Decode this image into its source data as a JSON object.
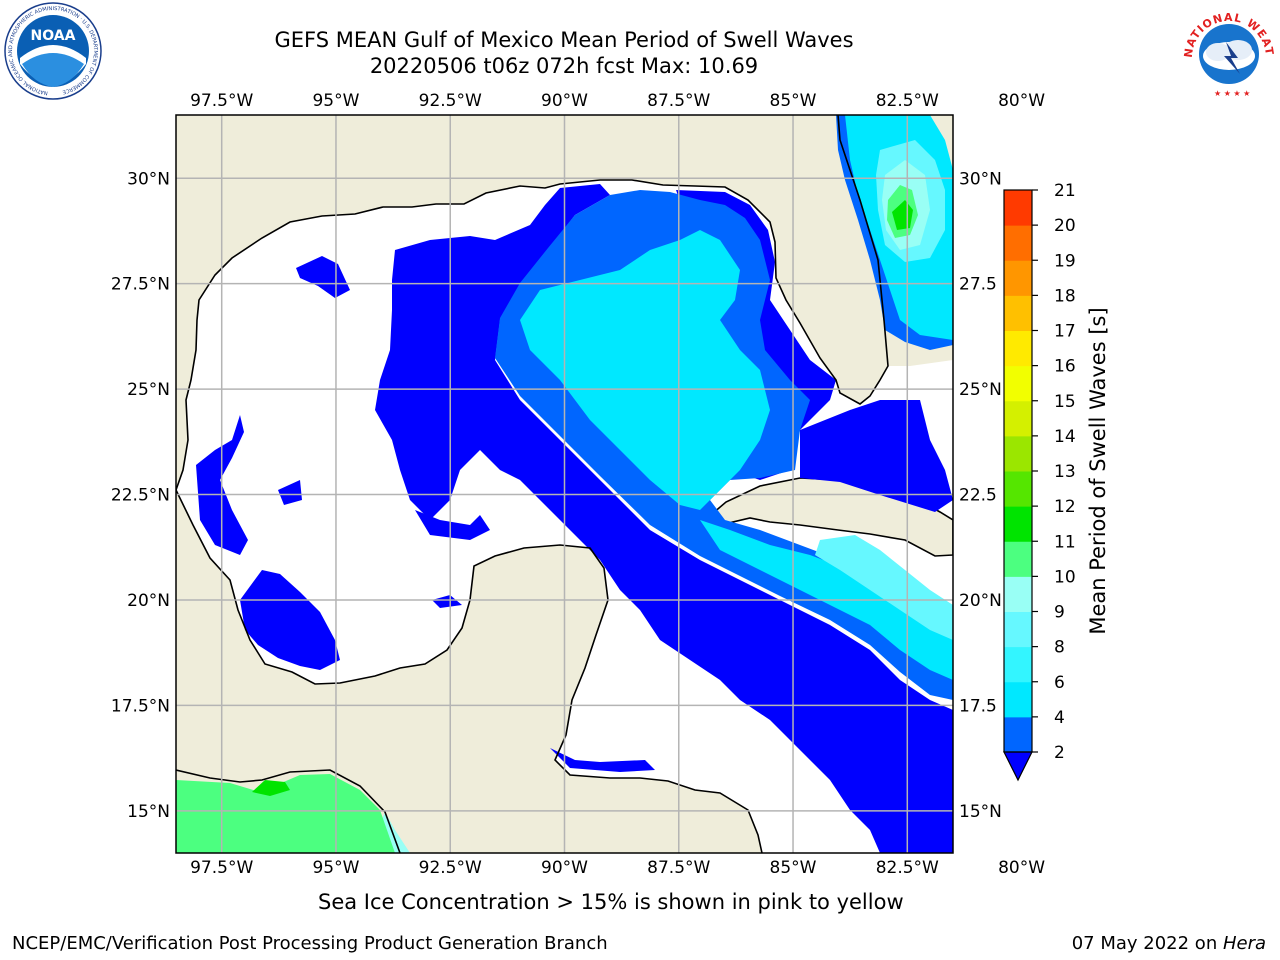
{
  "header": {
    "title_line1": "GEFS MEAN Gulf of Mexico Mean Period of Swell Waves",
    "title_line2": "20220506 t06z 072h fcst   Max: 10.69"
  },
  "logos": {
    "noaa_text": "NOAA",
    "noaa_ring_text": "NATIONAL OCEANIC AND ATMOSPHERIC ADMINISTRATION · U.S. DEPARTMENT OF COMMERCE",
    "nws_ring_text": "NATIONAL WEATHER SERVICE"
  },
  "map": {
    "lon_range": [
      -98.5,
      -81.5
    ],
    "lat_range": [
      14.0,
      31.5
    ],
    "lon_ticks": [
      "97.5°W",
      "95°W",
      "92.5°W",
      "90°W",
      "87.5°W",
      "85°W",
      "82.5°W",
      "80°W"
    ],
    "lat_ticks_left": [
      "30°N",
      "27.5°N",
      "25°N",
      "22.5°N",
      "20°N",
      "17.5°N",
      "15°N"
    ],
    "lat_ticks_right": [
      "30°N",
      "27.5",
      "25°N",
      "22.5",
      "20°N",
      "17.5",
      "15°N"
    ],
    "colors": {
      "land": "#efedda",
      "ocean_nodata": "#ffffff",
      "grid": "#b4b4b4"
    }
  },
  "colorbar": {
    "label": "Mean Period of Swell Waves [s]",
    "ticks": [
      "2",
      "4",
      "6",
      "8",
      "9",
      "10",
      "11",
      "12",
      "13",
      "14",
      "15",
      "16",
      "17",
      "18",
      "19",
      "20",
      "21"
    ],
    "colors": [
      "#0066ff",
      "#00e8ff",
      "#33f5ff",
      "#66f8ff",
      "#99fff5",
      "#4cff80",
      "#00e400",
      "#55e600",
      "#9be600",
      "#d4f000",
      "#f2ff00",
      "#ffea00",
      "#ffc000",
      "#ff9600",
      "#ff6e00",
      "#ff3a00"
    ],
    "under_color": "#0000ff"
  },
  "footer": {
    "note": "Sea Ice Concentration > 15% is shown in pink to yellow",
    "branch": "NCEP/EMC/Verification Post Processing Product Generation Branch",
    "date": "07 May 2022 on ",
    "host": "Hera"
  }
}
